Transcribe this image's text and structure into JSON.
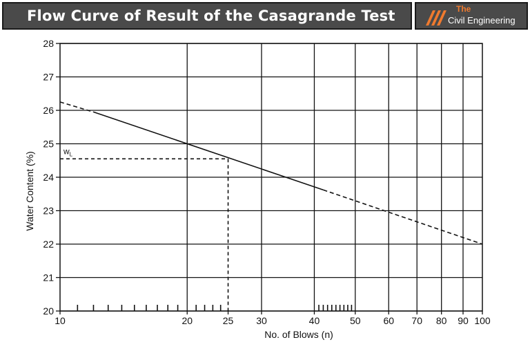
{
  "header": {
    "title": "Flow Curve of Result of the Casagrande Test",
    "logo_the": "The",
    "logo_name": "Civil Engineering",
    "accent_color": "#f07a2e",
    "banner_color": "#4a4a4a"
  },
  "chart_data": {
    "type": "line",
    "title": "Flow Curve of Result of the Casagrande Test",
    "xlabel": "No. of Blows (n)",
    "ylabel": "Water Content (%)",
    "x_scale": "log",
    "xlim": [
      10,
      100
    ],
    "ylim": [
      20,
      28
    ],
    "grid": true,
    "x_major_ticks": [
      10,
      20,
      25,
      30,
      40,
      50,
      60,
      70,
      80,
      90,
      100
    ],
    "x_tick_labels": [
      "10",
      "20",
      "25",
      "30",
      "40",
      "50",
      "60",
      "70",
      "80",
      "90",
      "100"
    ],
    "x_minor_ticks": [
      11,
      12,
      13,
      14,
      15,
      16,
      17,
      18,
      19,
      21,
      22,
      23,
      24,
      41,
      42,
      43,
      44,
      45,
      46,
      47,
      48,
      49
    ],
    "y_ticks": [
      20,
      21,
      22,
      23,
      24,
      25,
      26,
      27,
      28
    ],
    "y_tick_labels": [
      "20",
      "21",
      "22",
      "23",
      "24",
      "25",
      "26",
      "27",
      "28"
    ],
    "series": [
      {
        "style": "solid",
        "x": [
          12,
          42
        ],
        "y": [
          25.95,
          23.62
        ]
      },
      {
        "style": "dashed",
        "x": [
          10,
          12
        ],
        "y": [
          26.25,
          25.95
        ]
      },
      {
        "style": "dashed",
        "x": [
          42,
          100
        ],
        "y": [
          23.62,
          22.0
        ]
      }
    ],
    "annotations": [
      {
        "label": "wL",
        "label_main": "w",
        "label_sub": "L",
        "x": 25,
        "y": 24.55,
        "guide_lines": "dashed"
      }
    ]
  }
}
